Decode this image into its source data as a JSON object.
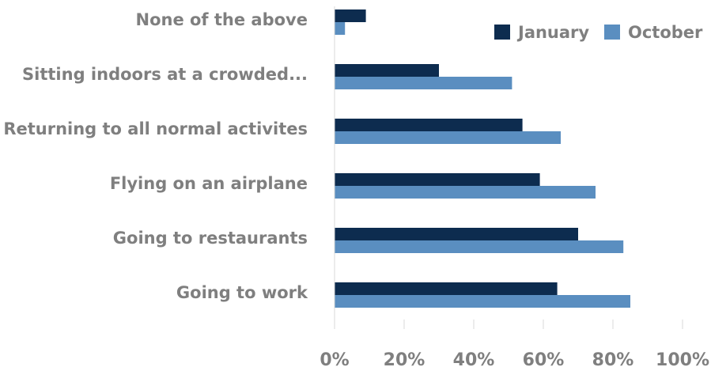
{
  "chart_data": {
    "type": "bar",
    "orientation": "horizontal",
    "categories": [
      "None of the above",
      "Sitting indoors at a crowded...",
      "Returning to all normal activites",
      "Flying on an airplane",
      "Going to restaurants",
      "Going to work"
    ],
    "series": [
      {
        "name": "January",
        "color": "#0d2c4f",
        "values": [
          9,
          30,
          54,
          59,
          70,
          64
        ]
      },
      {
        "name": "October",
        "color": "#5a8ec0",
        "values": [
          3,
          51,
          65,
          75,
          83,
          85
        ]
      }
    ],
    "x_ticks": [
      "0%",
      "20%",
      "40%",
      "60%",
      "80%",
      "100%"
    ],
    "xlim": [
      0,
      100
    ],
    "grid": false,
    "legend_position": "top-right"
  }
}
